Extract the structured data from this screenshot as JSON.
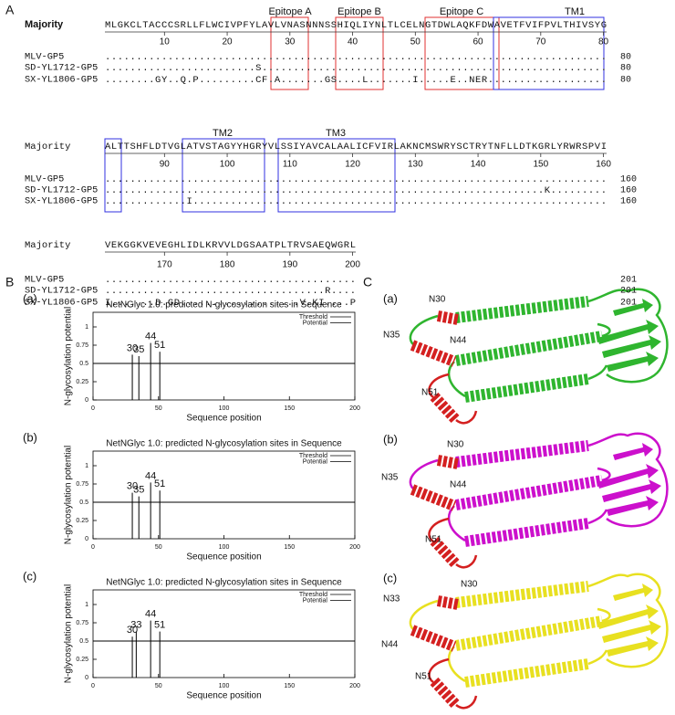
{
  "panel_labels": [
    "A",
    "B",
    "C"
  ],
  "alignment": {
    "blocks": [
      {
        "consensus_name": "Majority",
        "majority": "MLGKCLTACCCSRLLFLWCIVPFYLAVLVNASNNNSSHIQLIYNLTLCELNGTDWLAQKFDWAVETFVIFPVLTHIVSYG",
        "ruler": [
          10,
          20,
          30,
          40,
          50,
          60,
          70,
          80
        ],
        "regions": [
          "Epitope A",
          "Epitope B",
          "Epitope C",
          "TM1"
        ],
        "rows": [
          {
            "name": "MLV-GP5",
            "seq": "................................................................................",
            "end": 80
          },
          {
            "name": "SD-YL1712-GP5",
            "seq": "........................S.......................................................",
            "end": 80
          },
          {
            "name": "SX-YL1806-GP5",
            "seq": "........GY..Q.P.........CF.A.......GS....L.......I.....E..NER...................",
            "end": 80
          }
        ]
      },
      {
        "consensus_name": "Majority",
        "majority": "ALTTSHFLDTVGLATVSTAGYYHGRYVLSSIYAVCALAALICFVIRLAKNCMSWRYSCTRYTNFLLDTKGRLYRWRSPVI",
        "ruler": [
          90,
          100,
          110,
          120,
          130,
          140,
          150,
          160
        ],
        "regions": [
          "TM2",
          "TM3"
        ],
        "rows": [
          {
            "name": "MLV-GP5",
            "seq": "................................................................................",
            "end": 160
          },
          {
            "name": "SD-YL1712-GP5",
            "seq": "......................................................................K.........",
            "end": 160
          },
          {
            "name": "SX-YL1806-GP5",
            "seq": ".............I..................................................................",
            "end": 160
          }
        ]
      },
      {
        "consensus_name": "Majority",
        "majority": "VEKGGKVEVEGHLIDLKRVVLDGSAATPLTRVSAEQWGRL",
        "ruler": [
          170,
          180,
          190,
          200
        ],
        "regions": [],
        "rows": [
          {
            "name": "MLV-GP5",
            "seq": "........................................",
            "end": 201
          },
          {
            "name": "SD-YL1712-GP5",
            "seq": "...................................R....",
            "end": 201
          },
          {
            "name": "SX-YL1806-GP5",
            "seq": "I.......D.GD...................V.KI....P",
            "end": 201
          }
        ]
      }
    ]
  },
  "chart_data": [
    {
      "type": "stick",
      "label": "(a)",
      "title": "NetNGlyc 1.0: predicted N-glycosylation sites in Sequence",
      "x_label": "Sequence position",
      "y_label": "N-glycosylation potential",
      "xlim": [
        0,
        200
      ],
      "xticks": [
        0,
        50,
        100,
        150,
        200
      ],
      "ylim": [
        0,
        1.2
      ],
      "yticks": [
        0,
        0.25,
        0.5,
        0.75,
        1
      ],
      "threshold": {
        "name": "Threshold",
        "value": 0.5,
        "color": "#000000"
      },
      "series": [
        {
          "name": "Potential",
          "color": "#000000",
          "x": [
            30,
            35,
            44,
            51
          ],
          "values": [
            0.62,
            0.6,
            0.78,
            0.66
          ]
        }
      ],
      "legend": "upper right"
    },
    {
      "type": "stick",
      "label": "(b)",
      "title": "NetNGlyc 1.0: predicted N-glycosylation sites in Sequence",
      "x_label": "Sequence position",
      "y_label": "N-glycosylation potential",
      "xlim": [
        0,
        200
      ],
      "xticks": [
        0,
        50,
        100,
        150,
        200
      ],
      "ylim": [
        0,
        1.2
      ],
      "yticks": [
        0,
        0.25,
        0.5,
        0.75,
        1
      ],
      "threshold": {
        "name": "Threshold",
        "value": 0.5,
        "color": "#000000"
      },
      "series": [
        {
          "name": "Potential",
          "color": "#000000",
          "x": [
            30,
            35,
            44,
            51
          ],
          "values": [
            0.63,
            0.58,
            0.77,
            0.66
          ]
        }
      ],
      "legend": "upper right"
    },
    {
      "type": "stick",
      "label": "(c)",
      "title": "NetNGlyc 1.0: predicted N-glycosylation sites in Sequence",
      "x_label": "Sequence position",
      "y_label": "N-glycosylation potential",
      "xlim": [
        0,
        200
      ],
      "xticks": [
        0,
        50,
        100,
        150,
        200
      ],
      "ylim": [
        0,
        1.2
      ],
      "yticks": [
        0,
        0.25,
        0.5,
        0.75,
        1
      ],
      "threshold": {
        "name": "Threshold",
        "value": 0.5,
        "color": "#000000"
      },
      "series": [
        {
          "name": "Potential",
          "color": "#000000",
          "x": [
            30,
            33,
            44,
            51
          ],
          "values": [
            0.56,
            0.63,
            0.78,
            0.63
          ]
        }
      ],
      "legend": "upper right"
    }
  ],
  "structures": [
    {
      "label": "(a)",
      "sites": [
        "N30",
        "N35",
        "N44",
        "N51"
      ]
    },
    {
      "label": "(b)",
      "sites": [
        "N30",
        "N35",
        "N44",
        "N51"
      ]
    },
    {
      "label": "(c)",
      "sites": [
        "N30",
        "N33",
        "N44",
        "N51"
      ]
    }
  ]
}
